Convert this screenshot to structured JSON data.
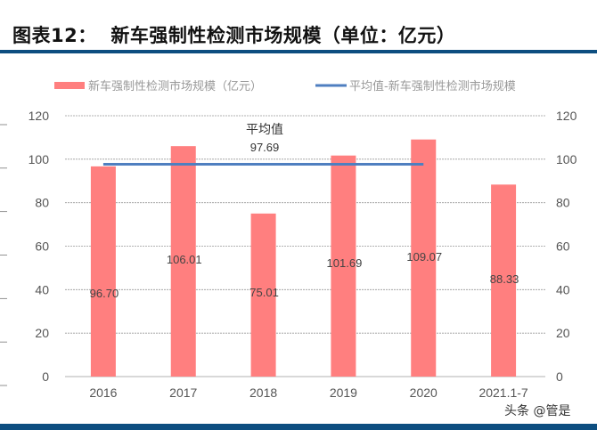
{
  "header": {
    "figure_label": "图表12：",
    "title": "新车强制性检测市场规模（单位：亿元）"
  },
  "watermark": "头条 @管是",
  "chart_data": {
    "type": "bar",
    "title": "新车强制性检测市场规模（单位：亿元）",
    "categories": [
      "2016",
      "2017",
      "2018",
      "2019",
      "2020",
      "2021.1-7"
    ],
    "series": [
      {
        "name": "新车强制性检测市场规模（亿元）",
        "type": "bar",
        "color": "#ff7f7f",
        "values": [
          96.7,
          106.01,
          75.01,
          101.69,
          109.07,
          88.33
        ],
        "labels": [
          "96.70",
          "106.01",
          "75.01",
          "101.69",
          "109.07",
          "88.33"
        ]
      },
      {
        "name": "平均值-新车强制性检测市场规模",
        "type": "line",
        "color": "#4f7fc0",
        "value": 97.69,
        "span": [
          "2016",
          "2020"
        ]
      }
    ],
    "annotation": {
      "label": "平均值",
      "value_label": "97.69"
    },
    "ylim": [
      0,
      120
    ],
    "yticks": [
      "0",
      "20",
      "40",
      "60",
      "80",
      "100",
      "120"
    ],
    "legend": "top",
    "grid": true
  }
}
